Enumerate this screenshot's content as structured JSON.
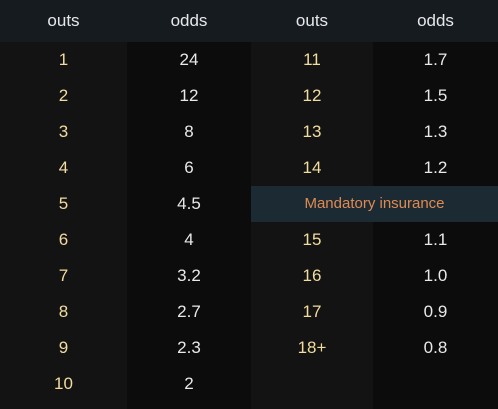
{
  "headers": [
    "outs",
    "odds",
    "outs",
    "odds"
  ],
  "left_rows": [
    {
      "outs": "1",
      "odds": "24"
    },
    {
      "outs": "2",
      "odds": "12"
    },
    {
      "outs": "3",
      "odds": "8"
    },
    {
      "outs": "4",
      "odds": "6"
    },
    {
      "outs": "5",
      "odds": "4.5"
    },
    {
      "outs": "6",
      "odds": "4"
    },
    {
      "outs": "7",
      "odds": "3.2"
    },
    {
      "outs": "8",
      "odds": "2.7"
    },
    {
      "outs": "9",
      "odds": "2.3"
    },
    {
      "outs": "10",
      "odds": "2"
    }
  ],
  "right_rows_top": [
    {
      "outs": "11",
      "odds": "1.7"
    },
    {
      "outs": "12",
      "odds": "1.5"
    },
    {
      "outs": "13",
      "odds": "1.3"
    },
    {
      "outs": "14",
      "odds": "1.2"
    }
  ],
  "banner": "Mandatory insurance",
  "right_rows_bottom": [
    {
      "outs": "15",
      "odds": "1.1"
    },
    {
      "outs": "16",
      "odds": "1.0"
    },
    {
      "outs": "17",
      "odds": "0.9"
    },
    {
      "outs": "18+",
      "odds": "0.8"
    }
  ],
  "colors": {
    "outs_text": "#f2dc9e",
    "odds_text": "#e9e9e9",
    "banner_text": "#e08a52",
    "banner_bg": "#1b2a33",
    "header_bg": "#161b20"
  }
}
